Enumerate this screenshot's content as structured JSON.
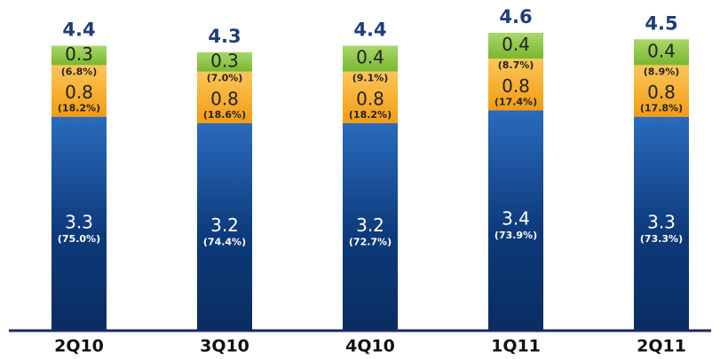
{
  "chart_data": {
    "type": "stacked_bar",
    "categories": [
      "2Q10",
      "3Q10",
      "4Q10",
      "1Q11",
      "2Q11"
    ],
    "totals": [
      4.4,
      4.3,
      4.4,
      4.6,
      4.5
    ],
    "series": [
      {
        "color": "#0d3a7a",
        "text_color": "#ffffff",
        "values": [
          3.3,
          3.2,
          3.2,
          3.4,
          3.3
        ],
        "share_labels": [
          "(75.0%)",
          "(74.4%)",
          "(72.7%)",
          "(73.9%)",
          "(73.3%)"
        ]
      },
      {
        "color": "#f6a623",
        "text_color": "#222222",
        "values": [
          0.8,
          0.8,
          0.8,
          0.8,
          0.8
        ],
        "share_labels": [
          "(18.2%)",
          "(18.6%)",
          "(18.2%)",
          "(17.4%)",
          "(17.8%)"
        ]
      },
      {
        "color": "#8cc63f",
        "text_color": "#222222",
        "values": [
          0.3,
          0.3,
          0.4,
          0.4,
          0.4
        ],
        "share_labels": [
          "(6.8%)",
          "(7.0%)",
          "(9.1%)",
          "(8.7%)",
          "(8.9%)"
        ]
      }
    ]
  }
}
